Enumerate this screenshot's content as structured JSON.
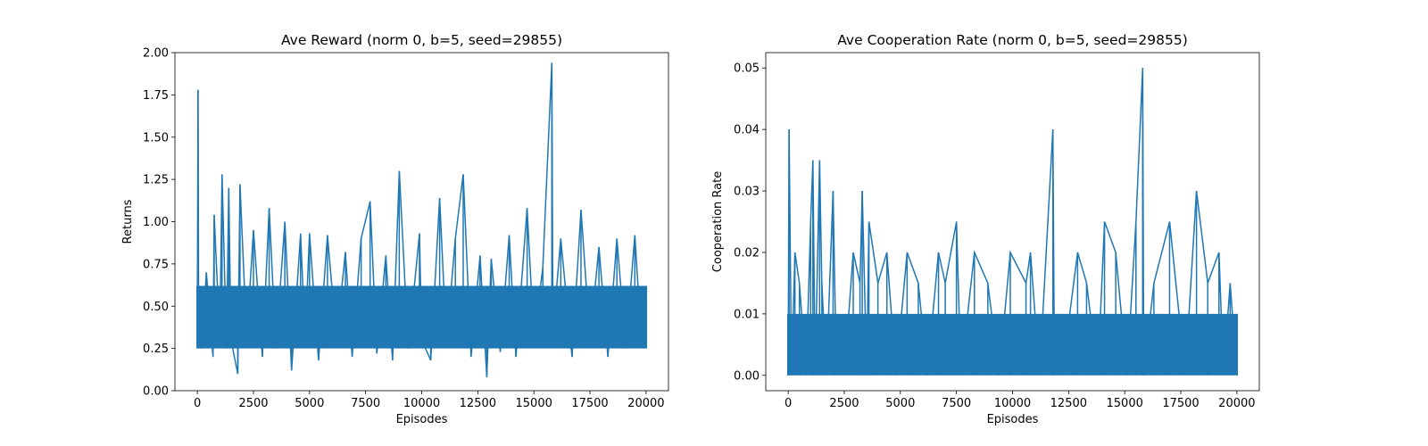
{
  "chart_data": [
    {
      "type": "line",
      "title": "Ave Reward (norm 0, b=5, seed=29855)",
      "xlabel": "Episodes",
      "ylabel": "Returns",
      "xlim": [
        -1000,
        21000
      ],
      "ylim": [
        0.0,
        2.0
      ],
      "xticks": [
        0,
        2500,
        5000,
        7500,
        10000,
        12500,
        15000,
        17500,
        20000
      ],
      "xtick_labels": [
        "0",
        "2500",
        "5000",
        "7500",
        "10000",
        "12500",
        "15000",
        "17500",
        "20000"
      ],
      "yticks": [
        0.0,
        0.25,
        0.5,
        0.75,
        1.0,
        1.25,
        1.5,
        1.75,
        2.0
      ],
      "ytick_labels": [
        "0.00",
        "0.25",
        "0.50",
        "0.75",
        "1.00",
        "1.25",
        "1.50",
        "1.75",
        "2.00"
      ],
      "grid": false,
      "color": "#1f77b4",
      "series": [
        {
          "x": [
            0,
            30,
            60,
            200,
            400,
            700,
            750,
            1000,
            1100,
            1300,
            1400,
            1500,
            1800,
            1900,
            2200,
            2500,
            2900,
            3200,
            3500,
            3900,
            4200,
            4600,
            4800,
            5000,
            5400,
            5800,
            6200,
            6600,
            6900,
            7300,
            7700,
            8000,
            8400,
            8700,
            9000,
            9400,
            9900,
            10000,
            10400,
            10800,
            11100,
            11500,
            11850,
            12200,
            12600,
            12900,
            13100,
            13500,
            13900,
            14200,
            14700,
            15000,
            15400,
            15800,
            15850,
            16200,
            16700,
            17100,
            17500,
            17900,
            18300,
            18700,
            19100,
            19500,
            19800,
            20000
          ],
          "y": [
            0.4,
            1.78,
            0.3,
            0.25,
            0.7,
            0.2,
            1.04,
            0.3,
            1.28,
            0.25,
            1.2,
            0.3,
            0.1,
            1.22,
            0.3,
            0.95,
            0.2,
            1.08,
            0.25,
            1.0,
            0.12,
            0.93,
            0.3,
            0.93,
            0.18,
            0.92,
            0.3,
            0.82,
            0.2,
            0.9,
            1.12,
            0.22,
            0.8,
            0.18,
            1.3,
            0.25,
            0.93,
            0.3,
            0.18,
            1.14,
            0.28,
            0.9,
            1.28,
            0.2,
            0.8,
            0.08,
            0.78,
            0.23,
            0.92,
            0.2,
            1.08,
            0.3,
            0.73,
            1.94,
            0.35,
            0.9,
            0.2,
            1.07,
            0.3,
            0.85,
            0.2,
            0.9,
            0.25,
            0.92,
            0.28,
            0.55
          ]
        }
      ]
    },
    {
      "type": "line",
      "title": "Ave Cooperation Rate (norm 0, b=5, seed=29855)",
      "xlabel": "Episodes",
      "ylabel": "Cooperation Rate",
      "xlim": [
        -1000,
        21000
      ],
      "ylim": [
        -0.0025,
        0.0525
      ],
      "xticks": [
        0,
        2500,
        5000,
        7500,
        10000,
        12500,
        15000,
        17500,
        20000
      ],
      "xtick_labels": [
        "0",
        "2500",
        "5000",
        "7500",
        "10000",
        "12500",
        "15000",
        "17500",
        "20000"
      ],
      "yticks": [
        0.0,
        0.01,
        0.02,
        0.03,
        0.04,
        0.05
      ],
      "ytick_labels": [
        "0.00",
        "0.01",
        "0.02",
        "0.03",
        "0.04",
        "0.05"
      ],
      "grid": false,
      "color": "#1f77b4",
      "series": [
        {
          "x": [
            0,
            40,
            150,
            300,
            500,
            800,
            1000,
            1100,
            1200,
            1400,
            1500,
            1700,
            2000,
            2100,
            2500,
            2900,
            3200,
            3300,
            3500,
            3600,
            4000,
            4400,
            4800,
            5300,
            5800,
            6200,
            6700,
            7000,
            7500,
            7700,
            8300,
            8900,
            9400,
            9900,
            10600,
            10800,
            11200,
            11800,
            11850,
            12200,
            12900,
            13300,
            13800,
            14100,
            14600,
            15100,
            15500,
            15800,
            15850,
            16300,
            17000,
            17700,
            18200,
            18700,
            19200,
            19400,
            19700,
            20000
          ],
          "y": [
            0.0,
            0.04,
            0.0,
            0.02,
            0.015,
            0.0,
            0.025,
            0.035,
            0.0,
            0.035,
            0.015,
            0.0,
            0.03,
            0.01,
            0.0,
            0.02,
            0.015,
            0.03,
            0.0,
            0.025,
            0.015,
            0.02,
            0.0,
            0.02,
            0.015,
            0.0,
            0.02,
            0.015,
            0.025,
            0.0,
            0.02,
            0.015,
            0.0,
            0.02,
            0.015,
            0.02,
            0.0,
            0.04,
            0.01,
            0.0,
            0.02,
            0.015,
            0.0,
            0.025,
            0.02,
            0.0,
            0.025,
            0.05,
            0.0,
            0.015,
            0.025,
            0.0,
            0.03,
            0.015,
            0.02,
            0.0,
            0.015,
            0.0
          ]
        }
      ]
    }
  ]
}
